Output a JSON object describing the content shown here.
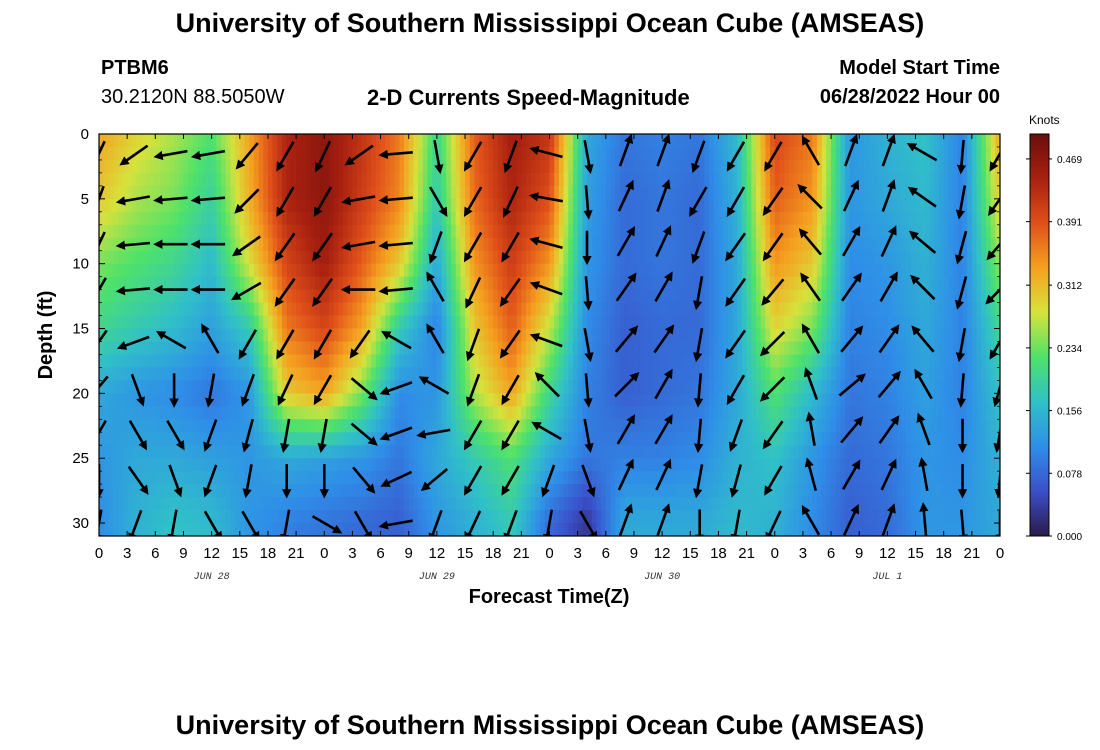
{
  "page": {
    "title_top": "University of Southern Mississippi Ocean Cube (AMSEAS)",
    "title_bottom": "University of Southern Mississippi Ocean Cube (AMSEAS)",
    "station_id": "PTBM6",
    "station_coords": "30.2120N  88.5050W",
    "model_start_label": "Model Start Time",
    "model_start_value": "06/28/2022 Hour 00"
  },
  "chart_data": {
    "type": "heatmap",
    "title": "2-D Currents Speed-Magnitude",
    "xlabel": "Forecast Time(Z)",
    "ylabel": "Depth (ft)",
    "units": "Knots",
    "x_range_hours": [
      0,
      96
    ],
    "y_range_ft": [
      0,
      31
    ],
    "x_ticks": [
      "0",
      "3",
      "6",
      "9",
      "12",
      "15",
      "18",
      "21",
      "0",
      "3",
      "6",
      "9",
      "12",
      "15",
      "18",
      "21",
      "0",
      "3",
      "6",
      "9",
      "12",
      "15",
      "18",
      "21",
      "0",
      "3",
      "6",
      "9",
      "12",
      "15",
      "18",
      "21",
      "0"
    ],
    "y_ticks": [
      0,
      5,
      10,
      15,
      20,
      25,
      30
    ],
    "y_tick_labels": [
      "0",
      "5",
      "10",
      "15",
      "20",
      "25",
      "30"
    ],
    "day_labels": [
      {
        "label": "JUN 28",
        "hour": 12
      },
      {
        "label": "JUN 29",
        "hour": 36
      },
      {
        "label": "JUN 30",
        "hour": 60
      },
      {
        "label": "JUL 1",
        "hour": 84
      }
    ],
    "colorbar": {
      "min": 0.0,
      "max": 0.5,
      "ticks": [
        0.0,
        0.078,
        0.156,
        0.234,
        0.312,
        0.391,
        0.469
      ],
      "tick_labels": [
        "0.000",
        "0.078",
        "0.156",
        "0.234",
        "0.312",
        "0.391",
        "0.469"
      ],
      "stops": [
        "#2a1a4a",
        "#3b4fc9",
        "#2f8ee8",
        "#30c0c8",
        "#4ee26a",
        "#d6e23c",
        "#f5a020",
        "#e0501a",
        "#a82010",
        "#6a0e0c"
      ]
    },
    "profile_hours": [
      0,
      4,
      8,
      12,
      16,
      20,
      24,
      28,
      32,
      36,
      40,
      44,
      48,
      52,
      56,
      60,
      64,
      68,
      72,
      76,
      80,
      84,
      88,
      92,
      96
    ],
    "profile_depths_ft": [
      0,
      5,
      10,
      15,
      20,
      25,
      30
    ],
    "speed_profiles": [
      [
        0.33,
        0.3,
        0.24,
        0.2,
        0.14,
        0.12,
        0.11
      ],
      [
        0.29,
        0.26,
        0.22,
        0.18,
        0.12,
        0.14,
        0.15
      ],
      [
        0.26,
        0.24,
        0.2,
        0.16,
        0.11,
        0.14,
        0.17
      ],
      [
        0.22,
        0.19,
        0.16,
        0.13,
        0.09,
        0.13,
        0.16
      ],
      [
        0.33,
        0.32,
        0.28,
        0.18,
        0.12,
        0.12,
        0.12
      ],
      [
        0.44,
        0.44,
        0.4,
        0.36,
        0.3,
        0.14,
        0.1
      ],
      [
        0.47,
        0.47,
        0.45,
        0.4,
        0.33,
        0.13,
        0.09
      ],
      [
        0.42,
        0.41,
        0.38,
        0.33,
        0.24,
        0.12,
        0.08
      ],
      [
        0.36,
        0.35,
        0.3,
        0.18,
        0.11,
        0.09,
        0.07
      ],
      [
        0.2,
        0.18,
        0.14,
        0.1,
        0.12,
        0.14,
        0.12
      ],
      [
        0.38,
        0.37,
        0.34,
        0.3,
        0.26,
        0.18,
        0.15
      ],
      [
        0.45,
        0.44,
        0.41,
        0.38,
        0.33,
        0.22,
        0.18
      ],
      [
        0.42,
        0.39,
        0.34,
        0.27,
        0.2,
        0.14,
        0.08
      ],
      [
        0.14,
        0.13,
        0.12,
        0.11,
        0.1,
        0.09,
        0.03
      ],
      [
        0.09,
        0.08,
        0.08,
        0.07,
        0.07,
        0.1,
        0.14
      ],
      [
        0.1,
        0.09,
        0.09,
        0.08,
        0.08,
        0.1,
        0.14
      ],
      [
        0.09,
        0.08,
        0.08,
        0.08,
        0.09,
        0.11,
        0.14
      ],
      [
        0.16,
        0.15,
        0.14,
        0.14,
        0.14,
        0.15,
        0.16
      ],
      [
        0.4,
        0.38,
        0.34,
        0.29,
        0.22,
        0.17,
        0.15
      ],
      [
        0.36,
        0.34,
        0.3,
        0.24,
        0.16,
        0.12,
        0.11
      ],
      [
        0.12,
        0.12,
        0.11,
        0.1,
        0.09,
        0.08,
        0.07
      ],
      [
        0.15,
        0.14,
        0.12,
        0.11,
        0.1,
        0.09,
        0.08
      ],
      [
        0.17,
        0.16,
        0.15,
        0.14,
        0.13,
        0.12,
        0.12
      ],
      [
        0.1,
        0.1,
        0.1,
        0.1,
        0.1,
        0.11,
        0.12
      ],
      [
        0.33,
        0.3,
        0.25,
        0.2,
        0.17,
        0.15,
        0.14
      ]
    ],
    "arrow_hours": [
      0,
      4,
      8,
      12,
      16,
      20,
      24,
      28,
      32,
      36,
      40,
      44,
      48,
      52,
      56,
      60,
      64,
      68,
      72,
      76,
      80,
      84,
      88,
      92,
      96
    ],
    "arrow_depths_ft": [
      1.5,
      5,
      8.5,
      12,
      16,
      19.5,
      23,
      26.5,
      30
    ],
    "arrow_directions_deg": [
      [
        205,
        200,
        205,
        210,
        215,
        220,
        210,
        180,
        190
      ],
      [
        235,
        260,
        265,
        265,
        250,
        160,
        150,
        145,
        200
      ],
      [
        260,
        265,
        270,
        270,
        300,
        180,
        150,
        160,
        190
      ],
      [
        260,
        265,
        270,
        270,
        330,
        190,
        200,
        200,
        150
      ],
      [
        220,
        225,
        235,
        240,
        210,
        200,
        195,
        190,
        150
      ],
      [
        210,
        210,
        215,
        215,
        210,
        205,
        190,
        180,
        190
      ],
      [
        205,
        210,
        215,
        215,
        210,
        210,
        190,
        180,
        120
      ],
      [
        235,
        260,
        260,
        270,
        215,
        130,
        130,
        140,
        150
      ],
      [
        265,
        265,
        265,
        265,
        300,
        250,
        250,
        245,
        260
      ],
      [
        170,
        150,
        200,
        330,
        330,
        300,
        260,
        230,
        200
      ],
      [
        210,
        210,
        210,
        205,
        200,
        200,
        210,
        210,
        205
      ],
      [
        200,
        205,
        210,
        215,
        215,
        210,
        210,
        210,
        200
      ],
      [
        285,
        280,
        285,
        290,
        290,
        315,
        300,
        200,
        190
      ],
      [
        170,
        175,
        180,
        175,
        170,
        175,
        170,
        160,
        150
      ],
      [
        20,
        25,
        30,
        35,
        40,
        45,
        30,
        25,
        20
      ],
      [
        20,
        20,
        25,
        30,
        35,
        30,
        30,
        25,
        20
      ],
      [
        200,
        210,
        200,
        190,
        190,
        185,
        185,
        190,
        180
      ],
      [
        210,
        210,
        215,
        215,
        215,
        210,
        200,
        195,
        190
      ],
      [
        210,
        215,
        215,
        220,
        225,
        225,
        215,
        210,
        205
      ],
      [
        330,
        315,
        320,
        325,
        330,
        340,
        350,
        345,
        330
      ],
      [
        20,
        25,
        30,
        35,
        40,
        50,
        40,
        30,
        25
      ],
      [
        20,
        20,
        25,
        30,
        35,
        40,
        35,
        25,
        20
      ],
      [
        300,
        305,
        310,
        315,
        320,
        330,
        340,
        350,
        355
      ],
      [
        185,
        190,
        195,
        195,
        190,
        185,
        180,
        180,
        175
      ],
      [
        210,
        215,
        220,
        225,
        210,
        195,
        190,
        185,
        180
      ]
    ]
  }
}
